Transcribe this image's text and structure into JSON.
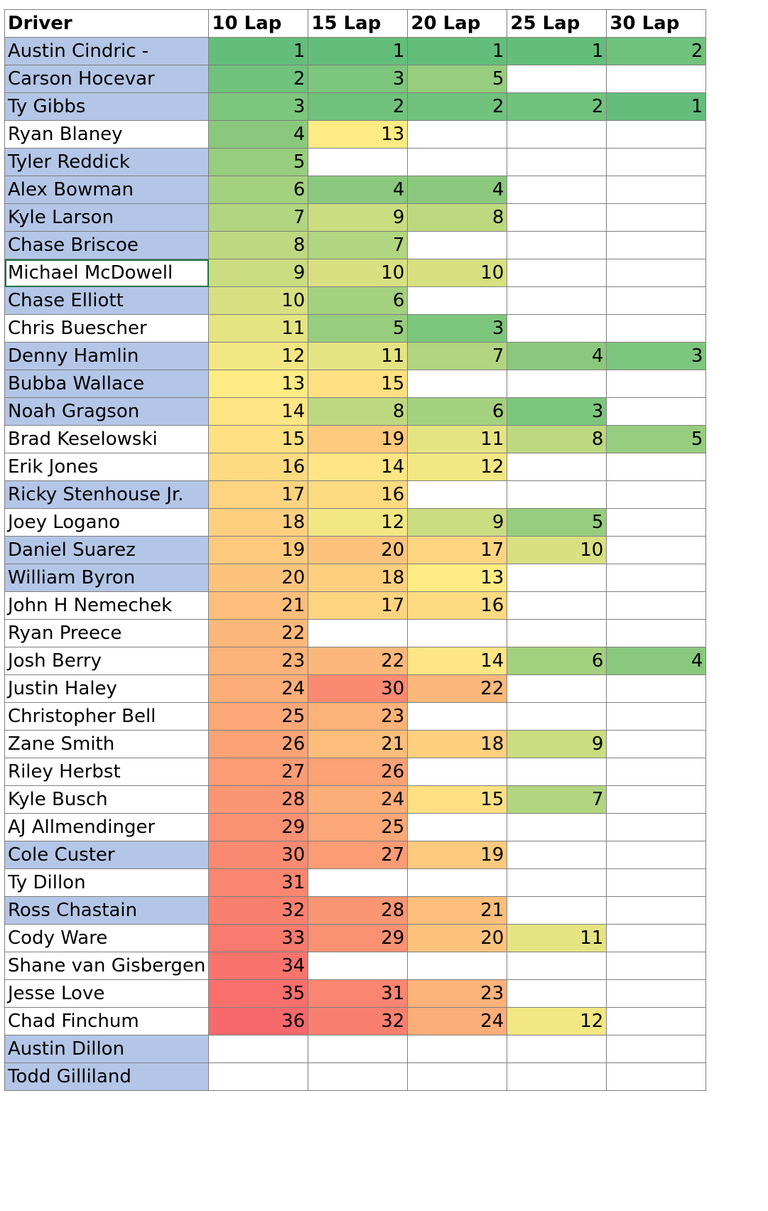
{
  "headers": [
    "Driver",
    "10 Lap",
    "15 Lap",
    "20 Lap",
    "25 Lap",
    "30 Lap"
  ],
  "colors": {
    "driver_highlight": "#b4c6e7",
    "selection_border": "#217346"
  },
  "selected_driver": "Michael McDowell",
  "rows": [
    {
      "driver": "Austin Cindric -",
      "hl": true,
      "vals": [
        1,
        1,
        1,
        1,
        2
      ]
    },
    {
      "driver": "Carson Hocevar",
      "hl": true,
      "vals": [
        2,
        3,
        5,
        null,
        null
      ]
    },
    {
      "driver": "Ty Gibbs",
      "hl": true,
      "vals": [
        3,
        2,
        2,
        2,
        1
      ]
    },
    {
      "driver": "Ryan Blaney",
      "hl": false,
      "vals": [
        4,
        13,
        null,
        null,
        null
      ]
    },
    {
      "driver": "Tyler Reddick",
      "hl": true,
      "vals": [
        5,
        null,
        null,
        null,
        null
      ]
    },
    {
      "driver": "Alex Bowman",
      "hl": true,
      "vals": [
        6,
        4,
        4,
        null,
        null
      ]
    },
    {
      "driver": "Kyle Larson",
      "hl": true,
      "vals": [
        7,
        9,
        8,
        null,
        null
      ]
    },
    {
      "driver": "Chase Briscoe",
      "hl": true,
      "vals": [
        8,
        7,
        null,
        null,
        null
      ]
    },
    {
      "driver": "Michael McDowell",
      "hl": false,
      "vals": [
        9,
        10,
        10,
        null,
        null
      ]
    },
    {
      "driver": "Chase Elliott",
      "hl": true,
      "vals": [
        10,
        6,
        null,
        null,
        null
      ]
    },
    {
      "driver": "Chris Buescher",
      "hl": false,
      "vals": [
        11,
        5,
        3,
        null,
        null
      ]
    },
    {
      "driver": "Denny Hamlin",
      "hl": true,
      "vals": [
        12,
        11,
        7,
        4,
        3
      ]
    },
    {
      "driver": "Bubba Wallace",
      "hl": true,
      "vals": [
        13,
        15,
        null,
        null,
        null
      ]
    },
    {
      "driver": "Noah Gragson",
      "hl": true,
      "vals": [
        14,
        8,
        6,
        3,
        null
      ]
    },
    {
      "driver": "Brad Keselowski",
      "hl": false,
      "vals": [
        15,
        19,
        11,
        8,
        5
      ]
    },
    {
      "driver": "Erik Jones",
      "hl": false,
      "vals": [
        16,
        14,
        12,
        null,
        null
      ]
    },
    {
      "driver": "Ricky Stenhouse Jr.",
      "hl": true,
      "vals": [
        17,
        16,
        null,
        null,
        null
      ]
    },
    {
      "driver": "Joey Logano",
      "hl": false,
      "vals": [
        18,
        12,
        9,
        5,
        null
      ]
    },
    {
      "driver": "Daniel Suarez",
      "hl": true,
      "vals": [
        19,
        20,
        17,
        10,
        null
      ]
    },
    {
      "driver": "William Byron",
      "hl": true,
      "vals": [
        20,
        18,
        13,
        null,
        null
      ]
    },
    {
      "driver": "John H Nemechek",
      "hl": false,
      "vals": [
        21,
        17,
        16,
        null,
        null
      ]
    },
    {
      "driver": "Ryan Preece",
      "hl": false,
      "vals": [
        22,
        null,
        null,
        null,
        null
      ]
    },
    {
      "driver": "Josh Berry",
      "hl": false,
      "vals": [
        23,
        22,
        14,
        6,
        4
      ]
    },
    {
      "driver": "Justin Haley",
      "hl": false,
      "vals": [
        24,
        30,
        22,
        null,
        null
      ]
    },
    {
      "driver": "Christopher Bell",
      "hl": false,
      "vals": [
        25,
        23,
        null,
        null,
        null
      ]
    },
    {
      "driver": "Zane Smith",
      "hl": false,
      "vals": [
        26,
        21,
        18,
        9,
        null
      ]
    },
    {
      "driver": "Riley Herbst",
      "hl": false,
      "vals": [
        27,
        26,
        null,
        null,
        null
      ]
    },
    {
      "driver": "Kyle Busch",
      "hl": false,
      "vals": [
        28,
        24,
        15,
        7,
        null
      ]
    },
    {
      "driver": "AJ Allmendinger",
      "hl": false,
      "vals": [
        29,
        25,
        null,
        null,
        null
      ]
    },
    {
      "driver": "Cole Custer",
      "hl": true,
      "vals": [
        30,
        27,
        19,
        null,
        null
      ]
    },
    {
      "driver": "Ty Dillon",
      "hl": false,
      "vals": [
        31,
        null,
        null,
        null,
        null
      ]
    },
    {
      "driver": "Ross Chastain",
      "hl": true,
      "vals": [
        32,
        28,
        21,
        null,
        null
      ]
    },
    {
      "driver": "Cody Ware",
      "hl": false,
      "vals": [
        33,
        29,
        20,
        11,
        null
      ]
    },
    {
      "driver": "Shane van Gisbergen",
      "hl": false,
      "vals": [
        34,
        null,
        null,
        null,
        null
      ]
    },
    {
      "driver": "Jesse Love",
      "hl": false,
      "vals": [
        35,
        31,
        23,
        null,
        null
      ]
    },
    {
      "driver": "Chad Finchum",
      "hl": false,
      "vals": [
        36,
        32,
        24,
        12,
        null
      ]
    },
    {
      "driver": "Austin Dillon",
      "hl": true,
      "vals": [
        null,
        null,
        null,
        null,
        null
      ]
    },
    {
      "driver": "Todd Gilliland",
      "hl": true,
      "vals": [
        null,
        null,
        null,
        null,
        null
      ]
    }
  ]
}
